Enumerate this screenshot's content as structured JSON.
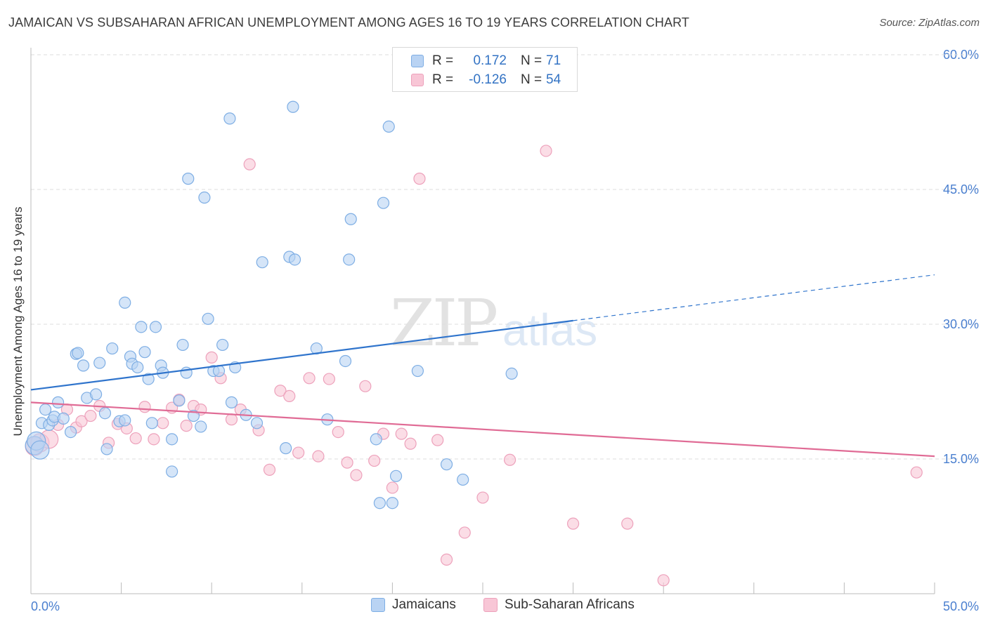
{
  "title": "JAMAICAN VS SUBSAHARAN AFRICAN UNEMPLOYMENT AMONG AGES 16 TO 19 YEARS CORRELATION CHART",
  "source": "Source: ZipAtlas.com",
  "watermark": {
    "zip": "ZIP",
    "atlas": "atlas"
  },
  "colors": {
    "jamaicans_fill": "#b9d3f3",
    "jamaicans_stroke": "#7eaee4",
    "jamaicans_line": "#2f74cc",
    "subsaharan_fill": "#f8c6d6",
    "subsaharan_stroke": "#eda1bb",
    "subsaharan_line": "#e06b95",
    "axis_label": "#4a7fcf",
    "grid": "#dddddd"
  },
  "legend_box": [
    {
      "r_label": "R =",
      "r_value": "0.172",
      "n_label": "N =",
      "n_value": "71"
    },
    {
      "r_label": "R =",
      "r_value": "-0.126",
      "n_label": "N =",
      "n_value": "54"
    }
  ],
  "chart_data": {
    "type": "scatter",
    "title": "JAMAICAN VS SUBSAHARAN AFRICAN UNEMPLOYMENT AMONG AGES 16 TO 19 YEARS CORRELATION CHART",
    "xlabel": "",
    "ylabel": "Unemployment Among Ages 16 to 19 years",
    "xlim": [
      0,
      50
    ],
    "ylim": [
      0,
      60
    ],
    "x_tick_labels": [
      "0.0%",
      "50.0%"
    ],
    "y_tick_labels": [
      "15.0%",
      "30.0%",
      "45.0%",
      "60.0%"
    ],
    "y_ticks": [
      15,
      30,
      45,
      60
    ],
    "grid": true,
    "legend_position": "bottom-center",
    "series": [
      {
        "name": "Jamaicans",
        "r": 0.172,
        "n": 71,
        "trend": {
          "x": [
            0,
            30
          ],
          "y": [
            22.7,
            30.4
          ],
          "dashed_to": [
            50,
            35.5
          ]
        },
        "points": [
          [
            0.2,
            16.5
          ],
          [
            0.3,
            17.0
          ],
          [
            0.5,
            16.0
          ],
          [
            0.6,
            19.0
          ],
          [
            0.8,
            20.5
          ],
          [
            1.0,
            18.8
          ],
          [
            1.2,
            19.3
          ],
          [
            1.3,
            19.7
          ],
          [
            1.5,
            21.3
          ],
          [
            1.8,
            19.5
          ],
          [
            2.2,
            18.0
          ],
          [
            2.5,
            26.7
          ],
          [
            2.6,
            26.8
          ],
          [
            2.9,
            25.4
          ],
          [
            3.1,
            21.8
          ],
          [
            3.6,
            22.2
          ],
          [
            3.8,
            25.7
          ],
          [
            4.1,
            20.1
          ],
          [
            4.2,
            16.1
          ],
          [
            4.5,
            27.3
          ],
          [
            4.9,
            19.2
          ],
          [
            5.2,
            19.3
          ],
          [
            5.2,
            32.4
          ],
          [
            5.5,
            26.4
          ],
          [
            5.6,
            25.6
          ],
          [
            5.9,
            25.2
          ],
          [
            6.1,
            29.7
          ],
          [
            6.3,
            26.9
          ],
          [
            6.5,
            23.9
          ],
          [
            6.7,
            19.0
          ],
          [
            6.9,
            29.7
          ],
          [
            7.2,
            25.4
          ],
          [
            7.3,
            24.6
          ],
          [
            7.8,
            17.2
          ],
          [
            7.8,
            13.6
          ],
          [
            8.2,
            21.5
          ],
          [
            8.4,
            27.7
          ],
          [
            8.6,
            24.6
          ],
          [
            8.7,
            46.2
          ],
          [
            9.0,
            19.8
          ],
          [
            9.4,
            18.6
          ],
          [
            9.6,
            44.1
          ],
          [
            9.8,
            30.6
          ],
          [
            10.1,
            24.8
          ],
          [
            10.4,
            24.8
          ],
          [
            10.6,
            27.7
          ],
          [
            11.0,
            52.9
          ],
          [
            11.1,
            21.3
          ],
          [
            11.3,
            25.2
          ],
          [
            11.9,
            19.9
          ],
          [
            12.5,
            19.0
          ],
          [
            12.8,
            36.9
          ],
          [
            14.1,
            16.2
          ],
          [
            14.3,
            37.5
          ],
          [
            14.5,
            54.2
          ],
          [
            14.6,
            37.2
          ],
          [
            15.8,
            27.3
          ],
          [
            16.4,
            19.4
          ],
          [
            17.4,
            25.9
          ],
          [
            17.6,
            37.2
          ],
          [
            17.7,
            41.7
          ],
          [
            19.1,
            17.2
          ],
          [
            19.3,
            10.1
          ],
          [
            19.5,
            43.5
          ],
          [
            19.8,
            52.0
          ],
          [
            20.0,
            10.1
          ],
          [
            20.2,
            13.1
          ],
          [
            21.4,
            24.8
          ],
          [
            23.0,
            14.4
          ],
          [
            23.9,
            12.7
          ],
          [
            26.6,
            24.5
          ]
        ]
      },
      {
        "name": "Sub-Saharan Africans",
        "r": -0.126,
        "n": 54,
        "trend": {
          "x": [
            0,
            50
          ],
          "y": [
            21.3,
            15.3
          ]
        },
        "points": [
          [
            0.2,
            16.4
          ],
          [
            0.5,
            16.8
          ],
          [
            1.0,
            17.2
          ],
          [
            1.5,
            18.8
          ],
          [
            2.0,
            20.5
          ],
          [
            2.5,
            18.5
          ],
          [
            2.8,
            19.2
          ],
          [
            3.3,
            19.8
          ],
          [
            3.8,
            20.9
          ],
          [
            4.3,
            16.8
          ],
          [
            4.8,
            18.9
          ],
          [
            5.3,
            18.4
          ],
          [
            5.8,
            17.3
          ],
          [
            6.3,
            20.8
          ],
          [
            6.8,
            17.2
          ],
          [
            7.3,
            19.0
          ],
          [
            7.8,
            20.7
          ],
          [
            8.2,
            21.6
          ],
          [
            8.6,
            18.7
          ],
          [
            9.0,
            20.9
          ],
          [
            9.4,
            20.5
          ],
          [
            10.0,
            26.3
          ],
          [
            10.5,
            24.0
          ],
          [
            11.1,
            19.4
          ],
          [
            11.6,
            20.5
          ],
          [
            12.1,
            47.8
          ],
          [
            12.6,
            18.2
          ],
          [
            13.2,
            13.8
          ],
          [
            13.8,
            22.6
          ],
          [
            14.3,
            22.0
          ],
          [
            14.8,
            15.7
          ],
          [
            15.4,
            24.0
          ],
          [
            15.9,
            15.3
          ],
          [
            16.5,
            23.9
          ],
          [
            17.0,
            18.0
          ],
          [
            17.5,
            14.6
          ],
          [
            18.0,
            13.2
          ],
          [
            18.5,
            23.1
          ],
          [
            19.0,
            14.8
          ],
          [
            19.5,
            17.8
          ],
          [
            20.0,
            11.8
          ],
          [
            20.5,
            17.8
          ],
          [
            21.0,
            16.7
          ],
          [
            21.5,
            46.2
          ],
          [
            22.5,
            17.1
          ],
          [
            23.0,
            3.8
          ],
          [
            24.0,
            6.8
          ],
          [
            25.0,
            10.7
          ],
          [
            26.5,
            14.9
          ],
          [
            28.5,
            49.3
          ],
          [
            30.0,
            7.8
          ],
          [
            33.0,
            7.8
          ],
          [
            35.0,
            1.5
          ],
          [
            49.0,
            13.5
          ]
        ]
      }
    ]
  },
  "bottom_legend": [
    {
      "label": "Jamaicans"
    },
    {
      "label": "Sub-Saharan Africans"
    }
  ]
}
